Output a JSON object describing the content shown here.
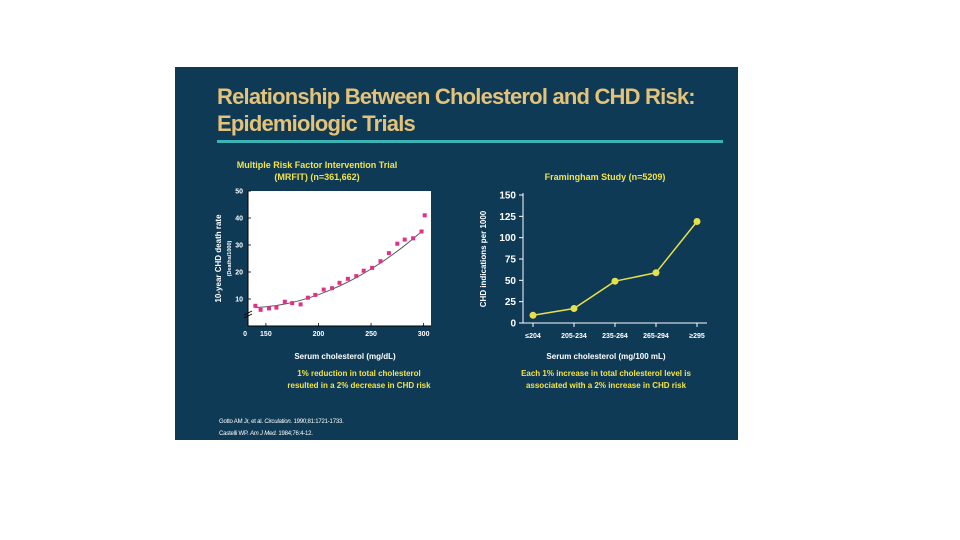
{
  "slide": {
    "title_line1": "Relationship Between Cholesterol and CHD Risk:",
    "title_line2": "Epidemiologic Trials",
    "colors": {
      "background": "#0f3a55",
      "title": "#e3c27a",
      "rule": "#3bb2b3",
      "chart_title": "#f2e34a",
      "left_markers": "#e0308a",
      "curve": "#e8e04a"
    }
  },
  "footnotes": {
    "ref1_authors": "Gotto AM Jr, et al.",
    "ref1_journal": "Circulation.",
    "ref1_details": "1990;81:1721-1733.",
    "ref2_authors": "Castelli WP.",
    "ref2_journal": "Am J Med.",
    "ref2_details": "1984;76:4-12."
  },
  "chart_data": [
    {
      "type": "scatter",
      "title_line1": "Multiple Risk Factor Intervention Trial",
      "title_line2": "(MRFIT) (n=361,662)",
      "ylabel": "10-year CHD death rate",
      "ylabel_sub": "(Deaths/1000)",
      "xlabel": "Serum cholesterol (mg/dL)",
      "origin_label": "0",
      "xlim": [
        133,
        307
      ],
      "ylim": [
        0,
        50
      ],
      "x_ticks": [
        150,
        200,
        250,
        300
      ],
      "x_tick_labels": [
        "150",
        "200",
        "250",
        "300"
      ],
      "y_ticks": [
        10,
        20,
        30,
        40,
        50
      ],
      "y_tick_labels": [
        "10",
        "20",
        "30",
        "40",
        "50"
      ],
      "x": [
        140,
        145,
        153,
        160,
        168,
        175,
        183,
        190,
        197,
        205,
        213,
        220,
        228,
        236,
        243,
        251,
        259,
        267,
        275,
        282,
        290,
        298,
        301
      ],
      "y": [
        7.5,
        6,
        6.5,
        6.8,
        9,
        8.5,
        8,
        10.5,
        11.5,
        13.5,
        14,
        16,
        17.5,
        18.5,
        20.5,
        21.5,
        24,
        27,
        30.5,
        32,
        32.5,
        35,
        41
      ],
      "fit_x": [
        140,
        150,
        160,
        170,
        180,
        190,
        200,
        210,
        220,
        230,
        240,
        250,
        260,
        270,
        280,
        290,
        300
      ],
      "fit_y": [
        6.8,
        7.1,
        7.6,
        8.3,
        9.2,
        10.3,
        11.6,
        13.1,
        14.8,
        16.7,
        18.8,
        21.1,
        23.6,
        26.3,
        29.2,
        32.3,
        35.6
      ],
      "caption_line1": "1% reduction in total cholesterol",
      "caption_line2": "resulted in a 2% decrease in CHD risk"
    },
    {
      "type": "line",
      "title": "Framingham Study (n=5209)",
      "ylabel": "CHD indications per 1000",
      "xlabel": "Serum cholesterol (mg/100 mL)",
      "categories": [
        "≤204",
        "205-234",
        "235-264",
        "265-294",
        "≥295"
      ],
      "values": [
        9,
        17,
        49,
        59,
        119
      ],
      "ylim": [
        0,
        150
      ],
      "y_ticks": [
        0,
        25,
        50,
        75,
        100,
        125,
        150
      ],
      "y_tick_labels": [
        "0",
        "25",
        "50",
        "75",
        "100",
        "125",
        "150"
      ],
      "caption_line1": "Each 1% increase in total cholesterol level is",
      "caption_line2": "associated with a 2% increase in CHD risk"
    }
  ]
}
